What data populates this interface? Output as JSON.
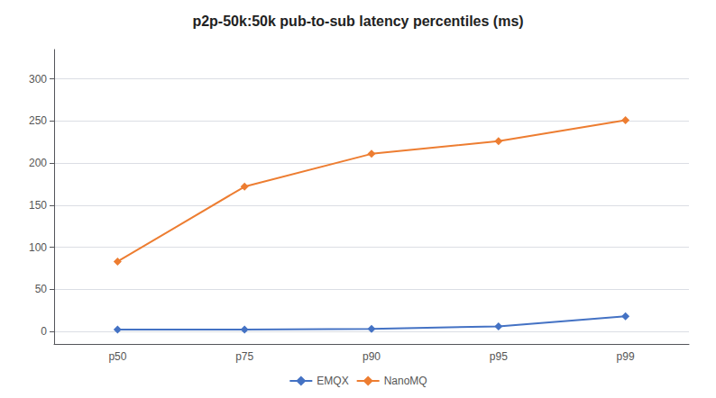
{
  "chart_data": {
    "type": "line",
    "title": "p2p-50k:50k pub-to-sub latency percentiles (ms)",
    "categories": [
      "p50",
      "p75",
      "p90",
      "p95",
      "p99"
    ],
    "series": [
      {
        "name": "EMQX",
        "color": "#4472C4",
        "values": [
          2,
          2,
          3,
          6,
          18
        ],
        "marker": "diamond"
      },
      {
        "name": "NanoMQ",
        "color": "#ED7D31",
        "values": [
          83,
          172,
          211,
          226,
          251
        ],
        "marker": "diamond"
      }
    ],
    "ylim": [
      -15,
      335
    ],
    "yticks": [
      0,
      50,
      100,
      150,
      200,
      250,
      300
    ],
    "grid": true,
    "legend": "bottom"
  }
}
